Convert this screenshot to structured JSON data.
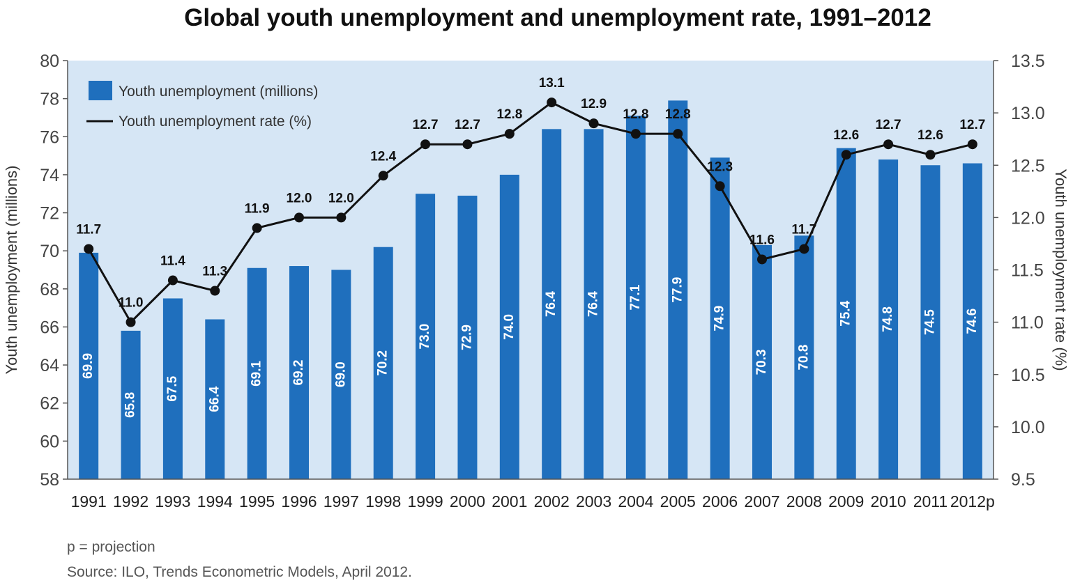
{
  "chart_data": {
    "type": "bar+line",
    "title": "Global youth unemployment and unemployment rate, 1991–2012",
    "categories": [
      "1991",
      "1992",
      "1993",
      "1994",
      "1995",
      "1996",
      "1997",
      "1998",
      "1999",
      "2000",
      "2001",
      "2002",
      "2003",
      "2004",
      "2005",
      "2006",
      "2007",
      "2008",
      "2009",
      "2010",
      "2011",
      "2012p"
    ],
    "series": [
      {
        "name": "Youth unemployment (millions)",
        "kind": "bar",
        "axis": "left",
        "values": [
          69.9,
          65.8,
          67.5,
          66.4,
          69.1,
          69.2,
          69.0,
          70.2,
          73.0,
          72.9,
          74.0,
          76.4,
          76.4,
          77.1,
          77.9,
          74.9,
          70.3,
          70.8,
          75.4,
          74.8,
          74.5,
          74.6
        ],
        "labels": [
          "69.9",
          "65.8",
          "67.5",
          "66.4",
          "69.1",
          "69.2",
          "69.0",
          "70.2",
          "73.0",
          "72.9",
          "74.0",
          "76.4",
          "76.4",
          "77.1",
          "77.9",
          "74.9",
          "70.3",
          "70.8",
          "75.4",
          "74.8",
          "74.5",
          "74.6"
        ]
      },
      {
        "name": "Youth unemployment rate (%)",
        "kind": "line",
        "axis": "right",
        "values": [
          11.7,
          11.0,
          11.4,
          11.3,
          11.9,
          12.0,
          12.0,
          12.4,
          12.7,
          12.7,
          12.8,
          13.1,
          12.9,
          12.8,
          12.8,
          12.3,
          11.6,
          11.7,
          12.6,
          12.7,
          12.6,
          12.7
        ],
        "labels": [
          "11.7",
          "11.0",
          "11.4",
          "11.3",
          "11.9",
          "12.0",
          "12.0",
          "12.4",
          "12.7",
          "12.7",
          "12.8",
          "13.1",
          "12.9",
          "12.8",
          "12.8",
          "12.3",
          "11.6",
          "11.7",
          "12.6",
          "12.7",
          "12.6",
          "12.7"
        ]
      }
    ],
    "ylabel_left": "Youth unemployment (millions)",
    "ylabel_right": "Youth unemployment rate (%)",
    "ylim_left": [
      58,
      80
    ],
    "ylim_right": [
      9.5,
      13.5
    ],
    "yticks_left": [
      "58",
      "60",
      "62",
      "64",
      "66",
      "68",
      "70",
      "72",
      "74",
      "76",
      "78",
      "80"
    ],
    "yticks_right": [
      "9.5",
      "10.0",
      "10.5",
      "11.0",
      "11.5",
      "12.0",
      "12.5",
      "13.0",
      "13.5"
    ],
    "legend_position": "top-left",
    "grid": false
  },
  "colors": {
    "bar": "#1f6fbd",
    "plot_background": "#d6e6f5",
    "line": "#111111",
    "marker": "#111111",
    "axis": "#555555"
  },
  "notes": {
    "projection": "p = projection",
    "source": "Source: ILO, Trends Econometric Models, April 2012."
  }
}
